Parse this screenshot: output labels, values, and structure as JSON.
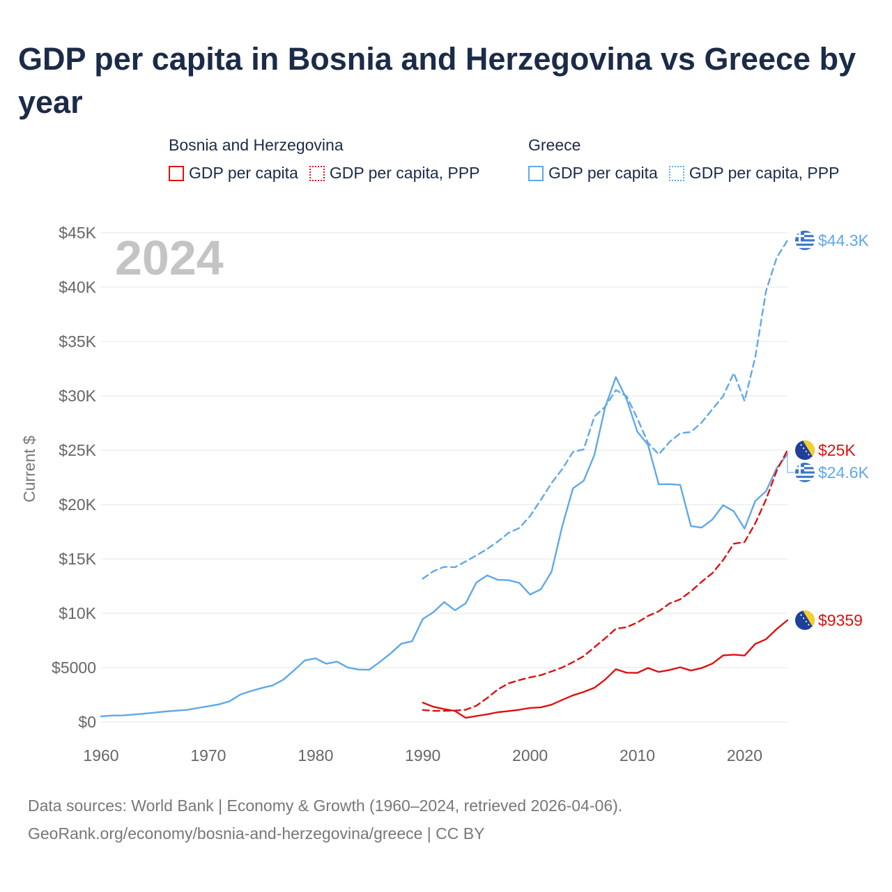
{
  "title": "GDP per capita in Bosnia and Herzegovina vs Greece by year",
  "legend": {
    "groups": [
      {
        "name": "Bosnia and Herzegovina",
        "color": "#dd1111",
        "items": [
          {
            "label": "GDP per capita",
            "style": "solid"
          },
          {
            "label": "GDP per capita, PPP",
            "style": "dotted"
          }
        ]
      },
      {
        "name": "Greece",
        "color": "#5fa8e8",
        "items": [
          {
            "label": "GDP per capita",
            "style": "solid"
          },
          {
            "label": "GDP per capita, PPP",
            "style": "dotted"
          }
        ]
      }
    ]
  },
  "footer": {
    "line1": "Data sources: World Bank | Economy & Growth (1960–2024, retrieved 2026-04-06).",
    "line2": "GeoRank.org/economy/bosnia-and-herzegovina/greece | CC BY"
  },
  "chart_data": {
    "type": "line",
    "year_label": "2024",
    "ylabel": "Current $",
    "xlim": [
      1960,
      2024
    ],
    "ylim": [
      0,
      45000
    ],
    "grid": true,
    "x_ticks": [
      1960,
      1970,
      1980,
      1990,
      2000,
      2010,
      2020
    ],
    "x_tick_labels": [
      "1960",
      "1970",
      "1980",
      "1990",
      "2000",
      "2010",
      "2020"
    ],
    "y_ticks": [
      0,
      5000,
      10000,
      15000,
      20000,
      25000,
      30000,
      35000,
      40000,
      45000
    ],
    "y_tick_labels": [
      "$0",
      "$5000",
      "$10K",
      "$15K",
      "$20K",
      "$25K",
      "$30K",
      "$35K",
      "$40K",
      "$45K"
    ],
    "series": [
      {
        "name": "Greece GDP per capita",
        "country": "Greece",
        "color": "#5fa8e8",
        "dash": "solid",
        "start": 1960,
        "end_label": "$24.6K",
        "values": [
          520,
          590,
          600,
          680,
          760,
          860,
          960,
          1040,
          1110,
          1280,
          1450,
          1620,
          1910,
          2530,
          2850,
          3130,
          3360,
          3890,
          4750,
          5660,
          5850,
          5360,
          5550,
          5010,
          4820,
          4800,
          5530,
          6300,
          7200,
          7420,
          9470,
          10100,
          11030,
          10270,
          10910,
          12840,
          13480,
          13070,
          13040,
          12790,
          11720,
          12200,
          13810,
          18000,
          21490,
          22190,
          24570,
          28970,
          31720,
          29710,
          26720,
          25490,
          21850,
          21880,
          21810,
          18020,
          17880,
          18630,
          19940,
          19380,
          17780,
          20330,
          21220,
          23360,
          24640
        ]
      },
      {
        "name": "Greece GDP per capita, PPP",
        "country": "Greece",
        "color": "#5fa8e8",
        "dash": "dashed",
        "start": 1990,
        "end_label": "$44.3K",
        "values": [
          13180,
          13870,
          14270,
          14240,
          14770,
          15330,
          15910,
          16600,
          17400,
          17840,
          18940,
          20420,
          21970,
          23260,
          24840,
          25080,
          28100,
          29000,
          30530,
          29970,
          27930,
          25670,
          24610,
          25750,
          26550,
          26680,
          27550,
          28770,
          29970,
          32100,
          29530,
          33560,
          39640,
          42720,
          44300
        ]
      },
      {
        "name": "Bosnia and Herzegovina GDP per capita",
        "country": "Bosnia and Herzegovina",
        "color": "#dd1111",
        "dash": "solid",
        "start": 1990,
        "end_label": "$9359",
        "values": [
          1780,
          1400,
          1180,
          1010,
          380,
          550,
          700,
          900,
          1000,
          1120,
          1290,
          1340,
          1590,
          2030,
          2450,
          2760,
          3150,
          3900,
          4850,
          4530,
          4510,
          4970,
          4600,
          4780,
          5030,
          4730,
          4960,
          5370,
          6120,
          6190,
          6110,
          7180,
          7610,
          8550,
          9359
        ]
      },
      {
        "name": "Bosnia and Herzegovina GDP per capita, PPP",
        "country": "Bosnia and Herzegovina",
        "color": "#dd1111",
        "dash": "dashed",
        "start": 1990,
        "end_label": "$25K",
        "values": [
          1100,
          1020,
          1020,
          1050,
          1120,
          1500,
          2200,
          3000,
          3550,
          3850,
          4100,
          4300,
          4650,
          5010,
          5500,
          6050,
          6880,
          7700,
          8580,
          8720,
          9150,
          9750,
          10180,
          10900,
          11280,
          12020,
          12900,
          13690,
          14890,
          16400,
          16550,
          18270,
          20460,
          23120,
          25000
        ]
      }
    ]
  }
}
